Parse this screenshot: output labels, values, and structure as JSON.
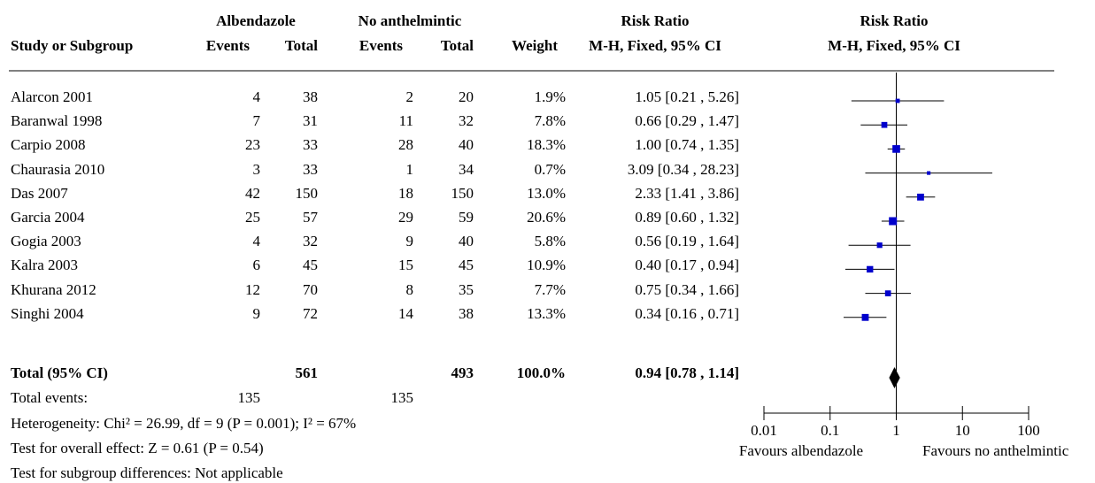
{
  "header": {
    "group1": "Albendazole",
    "group2": "No anthelmintic",
    "study_col": "Study or Subgroup",
    "events1": "Events",
    "total1": "Total",
    "events2": "Events",
    "total2": "Total",
    "weight": "Weight",
    "rr_title": "Risk Ratio",
    "rr_method": "M-H, Fixed, 95% CI",
    "plot_title": "Risk Ratio",
    "plot_method": "M-H, Fixed, 95% CI"
  },
  "studies": [
    {
      "name": "Alarcon 2001",
      "e1": "4",
      "t1": "38",
      "e2": "2",
      "t2": "20",
      "weight": "1.9%",
      "ci": "1.05 [0.21 , 5.26]"
    },
    {
      "name": "Baranwal 1998",
      "e1": "7",
      "t1": "31",
      "e2": "11",
      "t2": "32",
      "weight": "7.8%",
      "ci": "0.66 [0.29 , 1.47]"
    },
    {
      "name": "Carpio 2008",
      "e1": "23",
      "t1": "33",
      "e2": "28",
      "t2": "40",
      "weight": "18.3%",
      "ci": "1.00 [0.74 , 1.35]"
    },
    {
      "name": "Chaurasia 2010",
      "e1": "3",
      "t1": "33",
      "e2": "1",
      "t2": "34",
      "weight": "0.7%",
      "ci": "3.09 [0.34 , 28.23]"
    },
    {
      "name": "Das 2007",
      "e1": "42",
      "t1": "150",
      "e2": "18",
      "t2": "150",
      "weight": "13.0%",
      "ci": "2.33 [1.41 , 3.86]"
    },
    {
      "name": "Garcia 2004",
      "e1": "25",
      "t1": "57",
      "e2": "29",
      "t2": "59",
      "weight": "20.6%",
      "ci": "0.89 [0.60 , 1.32]"
    },
    {
      "name": "Gogia 2003",
      "e1": "4",
      "t1": "32",
      "e2": "9",
      "t2": "40",
      "weight": "5.8%",
      "ci": "0.56 [0.19 , 1.64]"
    },
    {
      "name": "Kalra 2003",
      "e1": "6",
      "t1": "45",
      "e2": "15",
      "t2": "45",
      "weight": "10.9%",
      "ci": "0.40 [0.17 , 0.94]"
    },
    {
      "name": "Khurana 2012",
      "e1": "12",
      "t1": "70",
      "e2": "8",
      "t2": "35",
      "weight": "7.7%",
      "ci": "0.75 [0.34 , 1.66]"
    },
    {
      "name": "Singhi 2004",
      "e1": "9",
      "t1": "72",
      "e2": "14",
      "t2": "38",
      "weight": "13.3%",
      "ci": "0.34 [0.16 , 0.71]"
    }
  ],
  "total": {
    "label": "Total (95% CI)",
    "t1": "561",
    "t2": "493",
    "weight": "100.0%",
    "ci": "0.94 [0.78 , 1.14]"
  },
  "total_events": {
    "label": "Total events:",
    "e1": "135",
    "e2": "135"
  },
  "notes": {
    "heterogeneity": "Heterogeneity: Chi² = 26.99, df = 9 (P = 0.001); I² = 67%",
    "overall": "Test for overall effect: Z = 0.61 (P = 0.54)",
    "subgroup": "Test for subgroup differences: Not applicable"
  },
  "axis": {
    "favours_left": "Favours albendazole",
    "favours_right": "Favours no anthelmintic"
  },
  "chart_data": {
    "type": "scatter",
    "scale": "log",
    "xlim": [
      0.01,
      100
    ],
    "ticks": [
      0.01,
      0.1,
      1,
      10,
      100
    ],
    "tick_labels": [
      "0.01",
      "0.1",
      "1",
      "10",
      "100"
    ],
    "reference": 1,
    "points": [
      {
        "rr": 1.05,
        "lo": 0.21,
        "hi": 5.26,
        "weight": 1.9
      },
      {
        "rr": 0.66,
        "lo": 0.29,
        "hi": 1.47,
        "weight": 7.8
      },
      {
        "rr": 1.0,
        "lo": 0.74,
        "hi": 1.35,
        "weight": 18.3
      },
      {
        "rr": 3.09,
        "lo": 0.34,
        "hi": 28.23,
        "weight": 0.7
      },
      {
        "rr": 2.33,
        "lo": 1.41,
        "hi": 3.86,
        "weight": 13.0
      },
      {
        "rr": 0.89,
        "lo": 0.6,
        "hi": 1.32,
        "weight": 20.6
      },
      {
        "rr": 0.56,
        "lo": 0.19,
        "hi": 1.64,
        "weight": 5.8
      },
      {
        "rr": 0.4,
        "lo": 0.17,
        "hi": 0.94,
        "weight": 10.9
      },
      {
        "rr": 0.75,
        "lo": 0.34,
        "hi": 1.66,
        "weight": 7.7
      },
      {
        "rr": 0.34,
        "lo": 0.16,
        "hi": 0.71,
        "weight": 13.3
      }
    ],
    "pooled": {
      "rr": 0.94,
      "lo": 0.78,
      "hi": 1.14
    },
    "marker_color": "#0000cc",
    "line_color": "#000000"
  }
}
